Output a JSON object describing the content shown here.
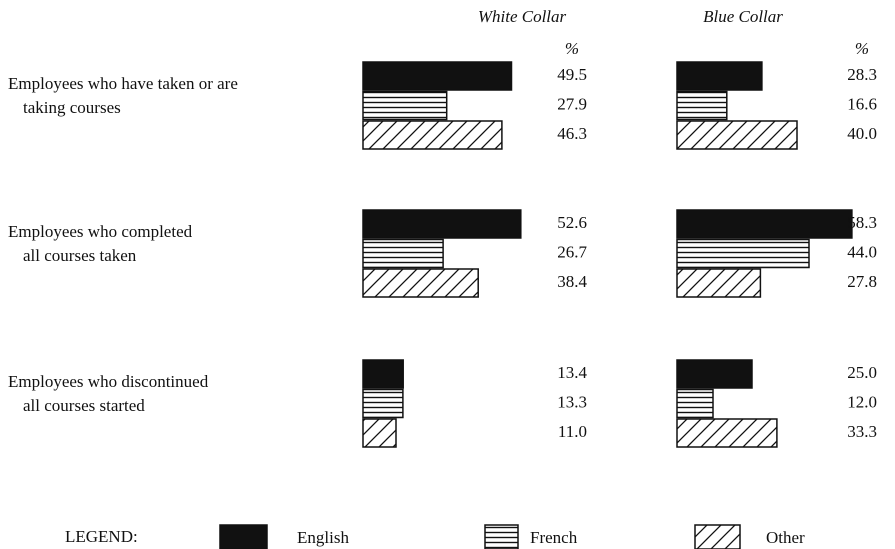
{
  "chart_data": {
    "type": "bar",
    "orientation": "horizontal",
    "categories": [
      [
        "Employees who have taken or are",
        "taking courses"
      ],
      [
        "Employees who completed",
        "all courses taken"
      ],
      [
        "Employees who discontinued",
        "all courses started"
      ]
    ],
    "series": [
      {
        "name": "English",
        "pattern": "solid",
        "color": "#111111"
      },
      {
        "name": "French",
        "pattern": "horizontal",
        "color": "#111111"
      },
      {
        "name": "Other",
        "pattern": "diagonal",
        "color": "#111111"
      }
    ],
    "panels": [
      {
        "title": "White Collar",
        "unit": "%",
        "series": [
          {
            "values": [
              49.5,
              52.6,
              13.4
            ],
            "value_labels": [
              "49.5",
              "52.6",
              "13.4"
            ]
          },
          {
            "values": [
              27.9,
              26.7,
              13.3
            ],
            "value_labels": [
              "27.9",
              "26.7",
              "13.3"
            ]
          },
          {
            "values": [
              46.3,
              38.4,
              11.0
            ],
            "value_labels": [
              "46.3",
              "38.4",
              "11.0"
            ]
          }
        ]
      },
      {
        "title": "Blue Collar",
        "unit": "%",
        "series": [
          {
            "values": [
              28.3,
              58.3,
              25.0
            ],
            "value_labels": [
              "28.3",
              "58.3",
              "25.0"
            ]
          },
          {
            "values": [
              16.6,
              44.0,
              12.0
            ],
            "value_labels": [
              "16.6",
              "44.0",
              "12.0"
            ]
          },
          {
            "values": [
              40.0,
              27.8,
              33.3
            ],
            "value_labels": [
              "40.0",
              "27.8",
              "33.3"
            ]
          }
        ]
      }
    ],
    "legend_title": "LEGEND:"
  }
}
